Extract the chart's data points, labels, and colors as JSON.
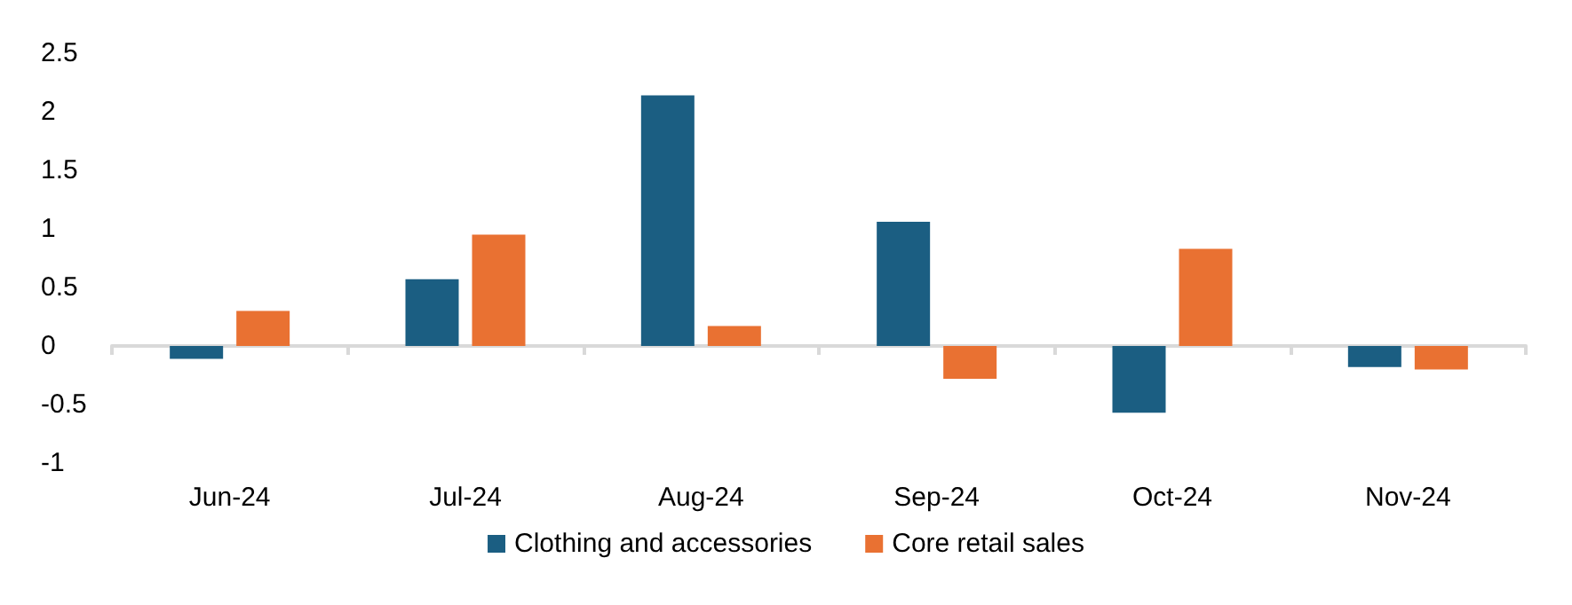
{
  "chart_data": {
    "type": "bar",
    "categories": [
      "Jun-24",
      "Jul-24",
      "Aug-24",
      "Sep-24",
      "Oct-24",
      "Nov-24"
    ],
    "series": [
      {
        "name": "Clothing and accessories",
        "color": "#1b5e82",
        "values": [
          -0.11,
          0.57,
          2.14,
          1.06,
          -0.57,
          -0.18
        ]
      },
      {
        "name": "Core retail sales",
        "color": "#e97132",
        "values": [
          0.3,
          0.95,
          0.17,
          -0.28,
          0.83,
          -0.2
        ]
      }
    ],
    "ylim": [
      -1,
      2.5
    ],
    "yticks": [
      -1,
      -0.5,
      0,
      0.5,
      1,
      1.5,
      2,
      2.5
    ],
    "legend": "bottom"
  }
}
